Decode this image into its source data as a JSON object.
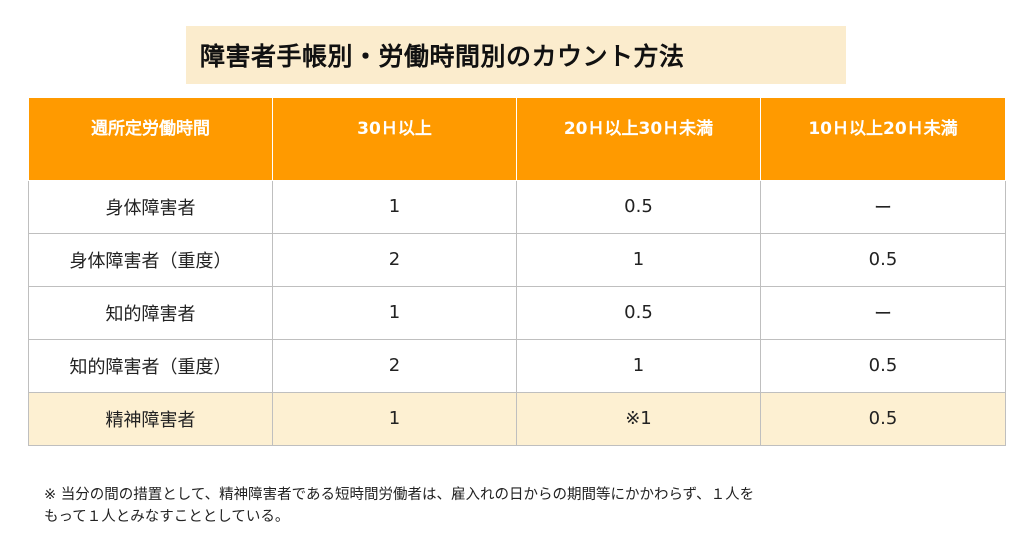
{
  "title": "障害者手帳別・労働時間別のカウント方法",
  "table": {
    "headers": [
      "週所定労働時間",
      "30Ｈ以上",
      "20Ｈ以上30Ｈ未満",
      "10Ｈ以上20Ｈ未満"
    ],
    "rows": [
      [
        "身体障害者",
        "1",
        "0.5",
        "ー"
      ],
      [
        "身体障害者（重度）",
        "2",
        "1",
        "0.5"
      ],
      [
        "知的障害者",
        "1",
        "0.5",
        "ー"
      ],
      [
        "知的障害者（重度）",
        "2",
        "1",
        "0.5"
      ],
      [
        "精神障害者",
        "1",
        "※1",
        "0.5"
      ]
    ]
  },
  "footnote": {
    "line1": "※ 当分の間の措置として、精神障害者である短時間労働者は、雇入れの日からの期間等にかかわらず、１人を",
    "line2": "もって１人とみなすこととしている。"
  },
  "colors": {
    "header_bg": "#ff9a00",
    "title_bg": "#fbeccd",
    "highlight_row_bg": "#fdf0d2"
  }
}
